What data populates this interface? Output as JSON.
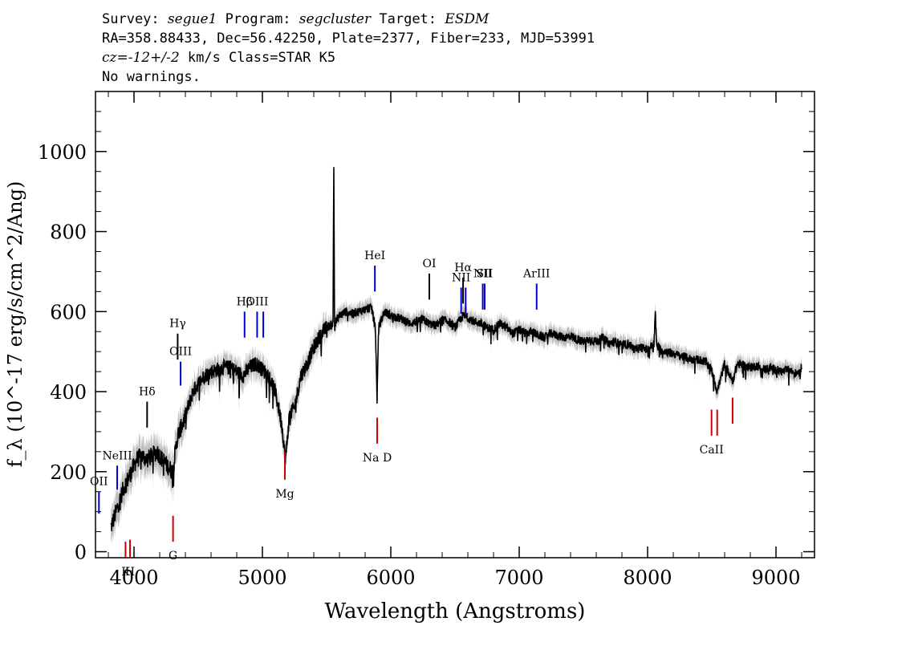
{
  "header": {
    "survey_label": "Survey:",
    "survey": "segue1",
    "program_label": "Program:",
    "program": "segcluster",
    "target_label": "Target:",
    "target": "ESDM",
    "line2": "RA=358.88433, Dec=56.42250, Plate=2377, Fiber=233, MJD=53991",
    "cz": "cz=-12+/-2",
    "line3_rest": " km/s Class=STAR K5",
    "line4": "No warnings."
  },
  "chart_data": {
    "type": "line",
    "title": "",
    "xlabel": "Wavelength (Angstroms)",
    "ylabel": "f_λ (10^-17 erg/s/cm^2/Ang)",
    "xlim": [
      3700,
      9300
    ],
    "ylim": [
      -15,
      1150
    ],
    "x_ticks": [
      4000,
      5000,
      6000,
      7000,
      8000,
      9000
    ],
    "x_tick_labels": [
      "4000",
      "5000",
      "6000",
      "7000",
      "8000",
      "9000"
    ],
    "y_ticks": [
      0,
      200,
      400,
      600,
      800,
      1000
    ],
    "y_tick_labels": [
      "0",
      "200",
      "400",
      "600",
      "800",
      "1000"
    ],
    "series": [
      {
        "name": "flux",
        "color": "#000000",
        "points": [
          [
            3820,
            60
          ],
          [
            3850,
            90
          ],
          [
            3880,
            120
          ],
          [
            3920,
            160
          ],
          [
            3950,
            180
          ],
          [
            3980,
            200
          ],
          [
            4020,
            230
          ],
          [
            4060,
            240
          ],
          [
            4100,
            230
          ],
          [
            4140,
            240
          ],
          [
            4180,
            250
          ],
          [
            4220,
            230
          ],
          [
            4260,
            215
          ],
          [
            4300,
            200
          ],
          [
            4340,
            290
          ],
          [
            4380,
            320
          ],
          [
            4420,
            360
          ],
          [
            4460,
            400
          ],
          [
            4500,
            420
          ],
          [
            4550,
            440
          ],
          [
            4600,
            450
          ],
          [
            4650,
            455
          ],
          [
            4700,
            460
          ],
          [
            4750,
            460
          ],
          [
            4800,
            450
          ],
          [
            4850,
            440
          ],
          [
            4900,
            460
          ],
          [
            4950,
            470
          ],
          [
            5000,
            455
          ],
          [
            5050,
            440
          ],
          [
            5100,
            400
          ],
          [
            5150,
            320
          ],
          [
            5180,
            230
          ],
          [
            5210,
            340
          ],
          [
            5250,
            360
          ],
          [
            5300,
            440
          ],
          [
            5350,
            470
          ],
          [
            5400,
            510
          ],
          [
            5450,
            540
          ],
          [
            5500,
            560
          ],
          [
            5550,
            570
          ],
          [
            5556,
            960
          ],
          [
            5562,
            570
          ],
          [
            5600,
            590
          ],
          [
            5650,
            600
          ],
          [
            5700,
            595
          ],
          [
            5750,
            600
          ],
          [
            5800,
            605
          ],
          [
            5850,
            610
          ],
          [
            5880,
            560
          ],
          [
            5893,
            380
          ],
          [
            5905,
            560
          ],
          [
            5950,
            600
          ],
          [
            6000,
            590
          ],
          [
            6050,
            585
          ],
          [
            6100,
            580
          ],
          [
            6150,
            570
          ],
          [
            6200,
            575
          ],
          [
            6250,
            580
          ],
          [
            6300,
            570
          ],
          [
            6350,
            565
          ],
          [
            6400,
            580
          ],
          [
            6450,
            575
          ],
          [
            6500,
            560
          ],
          [
            6563,
            590
          ],
          [
            6600,
            585
          ],
          [
            6650,
            575
          ],
          [
            6700,
            570
          ],
          [
            6750,
            560
          ],
          [
            6800,
            555
          ],
          [
            6850,
            570
          ],
          [
            6900,
            560
          ],
          [
            6950,
            545
          ],
          [
            7000,
            555
          ],
          [
            7050,
            545
          ],
          [
            7100,
            550
          ],
          [
            7150,
            540
          ],
          [
            7200,
            535
          ],
          [
            7250,
            545
          ],
          [
            7300,
            540
          ],
          [
            7350,
            535
          ],
          [
            7400,
            540
          ],
          [
            7450,
            530
          ],
          [
            7500,
            525
          ],
          [
            7550,
            530
          ],
          [
            7600,
            525
          ],
          [
            7650,
            535
          ],
          [
            7700,
            520
          ],
          [
            7750,
            525
          ],
          [
            7800,
            515
          ],
          [
            7850,
            520
          ],
          [
            7900,
            505
          ],
          [
            7950,
            510
          ],
          [
            8000,
            505
          ],
          [
            8050,
            520
          ],
          [
            8060,
            600
          ],
          [
            8070,
            515
          ],
          [
            8100,
            505
          ],
          [
            8150,
            500
          ],
          [
            8200,
            495
          ],
          [
            8250,
            490
          ],
          [
            8300,
            485
          ],
          [
            8350,
            480
          ],
          [
            8400,
            480
          ],
          [
            8450,
            475
          ],
          [
            8498,
            455
          ],
          [
            8542,
            400
          ],
          [
            8600,
            470
          ],
          [
            8662,
            425
          ],
          [
            8700,
            470
          ],
          [
            8750,
            465
          ],
          [
            8800,
            460
          ],
          [
            8850,
            465
          ],
          [
            8900,
            455
          ],
          [
            8950,
            460
          ],
          [
            9000,
            455
          ],
          [
            9050,
            450
          ],
          [
            9100,
            455
          ],
          [
            9150,
            445
          ],
          [
            9200,
            460
          ]
        ]
      }
    ],
    "line_markers": [
      {
        "label": "OII",
        "x": 3727,
        "y_bottom": 95,
        "y_top": 150,
        "color": "#0000cc"
      },
      {
        "label": "NeIII",
        "x": 3869,
        "y_bottom": 155,
        "y_top": 215,
        "color": "#0000cc"
      },
      {
        "label": "Hδ",
        "x": 4102,
        "y_bottom": 310,
        "y_top": 375,
        "color": "#000000"
      },
      {
        "label": "Hγ",
        "x": 4340,
        "y_bottom": 480,
        "y_top": 545,
        "color": "#000000"
      },
      {
        "label": "OIII",
        "x": 4363,
        "y_bottom": 415,
        "y_top": 475,
        "color": "#0000cc"
      },
      {
        "label": "Hβ",
        "x": 4861,
        "y_bottom": 535,
        "y_top": 600,
        "color": "#0000cc"
      },
      {
        "label": "OIII",
        "x": 4959,
        "y_bottom": 535,
        "y_top": 600,
        "color": "#0000cc"
      },
      {
        "label": "",
        "x": 5007,
        "y_bottom": 535,
        "y_top": 600,
        "color": "#0000cc"
      },
      {
        "label": "HeI",
        "x": 5876,
        "y_bottom": 650,
        "y_top": 715,
        "color": "#0000cc"
      },
      {
        "label": "OI",
        "x": 6300,
        "y_bottom": 630,
        "y_top": 695,
        "color": "#000000"
      },
      {
        "label": "NII",
        "x": 6548,
        "y_bottom": 595,
        "y_top": 660,
        "color": "#0000cc"
      },
      {
        "label": "Hα",
        "x": 6563,
        "y_bottom": 620,
        "y_top": 685,
        "color": "#000000"
      },
      {
        "label": "",
        "x": 6583,
        "y_bottom": 595,
        "y_top": 660,
        "color": "#0000cc"
      },
      {
        "label": "NII",
        "x": 6716,
        "y_bottom": 605,
        "y_top": 670,
        "color": "#0000cc"
      },
      {
        "label": "SII",
        "x": 6731,
        "y_bottom": 605,
        "y_top": 670,
        "color": "#0000cc"
      },
      {
        "label": "ArIII",
        "x": 7136,
        "y_bottom": 605,
        "y_top": 670,
        "color": "#0000cc"
      },
      {
        "label": "K",
        "x": 3934,
        "y_bottom": -15,
        "y_top": 25,
        "color": "#cc0000"
      },
      {
        "label": "H",
        "x": 3969,
        "y_bottom": -15,
        "y_top": 30,
        "color": "#cc0000"
      },
      {
        "label": "G",
        "x": 4304,
        "y_bottom": 25,
        "y_top": 90,
        "color": "#cc0000"
      },
      {
        "label": "Mg",
        "x": 5175,
        "y_bottom": 180,
        "y_top": 250,
        "color": "#cc0000"
      },
      {
        "label": "Na D",
        "x": 5894,
        "y_bottom": 270,
        "y_top": 335,
        "color": "#cc0000"
      },
      {
        "label": "CaII",
        "x": 8498,
        "y_bottom": 290,
        "y_top": 355,
        "color": "#cc0000"
      },
      {
        "label": "",
        "x": 8542,
        "y_bottom": 290,
        "y_top": 355,
        "color": "#cc0000"
      },
      {
        "label": "",
        "x": 8662,
        "y_bottom": 320,
        "y_top": 385,
        "color": "#cc0000"
      }
    ],
    "grid": false,
    "legend": "none"
  }
}
